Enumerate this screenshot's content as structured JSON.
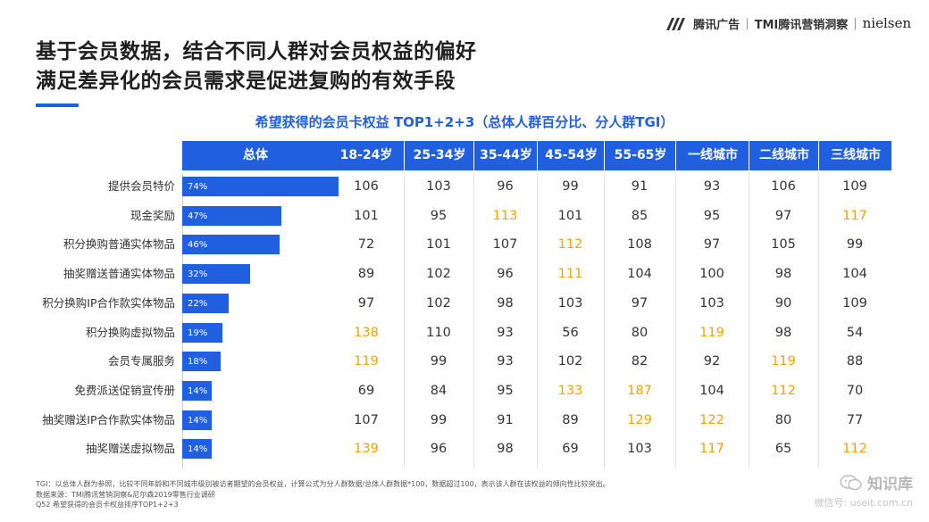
{
  "header": {
    "brand_tencent": "腾讯广告",
    "brand_tmi": "TMI腾讯营销洞察",
    "brand_nielsen": "nielsen",
    "separator": "|"
  },
  "title": {
    "line1": "基于会员数据，结合不同人群对会员权益的偏好",
    "line2": "满足差异化的会员需求是促进复购的有效手段"
  },
  "accent_color": "#1f5fe0",
  "highlight_color": "#f5a200",
  "chart_data": {
    "type": "bar",
    "title": "希望获得的会员卡权益 TOP1+2+3（总体人群百分比、分人群TGI）",
    "first_column_header": "总体",
    "categories": [
      "提供会员特价",
      "现金奖励",
      "积分换购普通实体物品",
      "抽奖赠送普通实体物品",
      "积分换购IP合作款实体物品",
      "积分换购虚拟物品",
      "会员专属服务",
      "免费派送促销宣传册",
      "抽奖赠送IP合作款实体物品",
      "抽奖赠送虚拟物品"
    ],
    "values": [
      74,
      47,
      46,
      32,
      22,
      19,
      18,
      14,
      14,
      14
    ],
    "value_labels": [
      "74%",
      "47%",
      "46%",
      "32%",
      "22%",
      "19%",
      "18%",
      "14%",
      "14%",
      "14%"
    ],
    "tgi_groups": [
      "18-24岁",
      "25-34岁",
      "35-44岁",
      "45-54岁",
      "55-65岁",
      "一线城市",
      "二线城市",
      "三线城市"
    ],
    "tgi": [
      [
        106,
        103,
        96,
        99,
        91,
        93,
        106,
        109
      ],
      [
        101,
        95,
        113,
        101,
        85,
        95,
        97,
        117
      ],
      [
        72,
        101,
        107,
        112,
        108,
        97,
        105,
        99
      ],
      [
        89,
        102,
        96,
        111,
        104,
        100,
        98,
        104
      ],
      [
        97,
        102,
        98,
        103,
        97,
        103,
        90,
        109
      ],
      [
        138,
        110,
        93,
        56,
        80,
        119,
        98,
        54
      ],
      [
        119,
        99,
        93,
        102,
        82,
        92,
        119,
        88
      ],
      [
        69,
        84,
        95,
        133,
        187,
        104,
        112,
        70
      ],
      [
        107,
        99,
        91,
        89,
        129,
        122,
        80,
        77
      ],
      [
        139,
        96,
        98,
        69,
        103,
        117,
        65,
        112
      ]
    ],
    "highlight_threshold": 110
  },
  "footnotes": [
    "TGI：以总体人群为参照，比较不同年龄和不同城市级别被访者期望的会员权益，计算公式为分人群数据/总体人群数据*100，数据超过100，表示该人群在该权益的倾向性比较突出。",
    "数据来源：TMI腾讯营销洞察&尼尔森2019零售行业调研",
    "Q52 希望获得的会员卡权益排序TOP1+2+3"
  ],
  "watermark": {
    "name": "知识库",
    "sub": "微信号: useit.com.cn"
  }
}
